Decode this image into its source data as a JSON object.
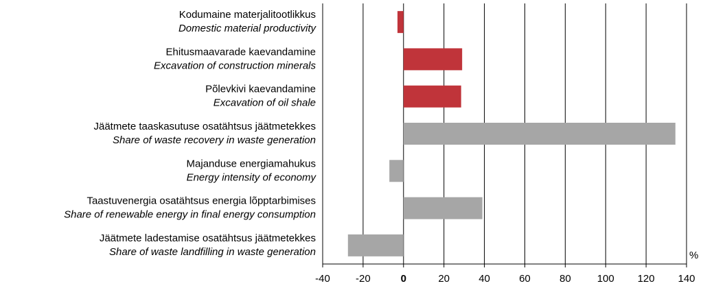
{
  "chart_data": {
    "type": "bar",
    "orientation": "horizontal",
    "categories": [
      "Kodumaine materjalitootlikkus",
      "Ehitusmaavarade kaevandamine",
      "Põlevkivi kaevandamine",
      "Jäätmete taaskasutuse osatähtsus jäätmetekkes",
      "Majanduse energiamahukus",
      "Taastuvenergia osatähtsus energia lõpptarbimises",
      "Jäätmete ladestamise osatähtsus jäätmetekkes"
    ],
    "categories_en": [
      "Domestic material productivity",
      "Excavation of construction minerals",
      "Excavation of oil shale",
      "Share of waste recovery in waste generation",
      "Energy intensity of economy",
      "Share of renewable energy in final energy consumption",
      "Share of waste landfilling in waste generation"
    ],
    "values": [
      -3,
      29,
      28.5,
      134.5,
      -7,
      39,
      -27.5
    ],
    "colors": [
      "#c0343a",
      "#c0343a",
      "#c0343a",
      "#a6a6a6",
      "#a6a6a6",
      "#a6a6a6",
      "#a6a6a6"
    ],
    "xlim": [
      -40,
      140
    ],
    "xticks": [
      -40,
      -20,
      0,
      20,
      40,
      60,
      80,
      100,
      120,
      140
    ],
    "x_unit": "%",
    "grid": true
  }
}
